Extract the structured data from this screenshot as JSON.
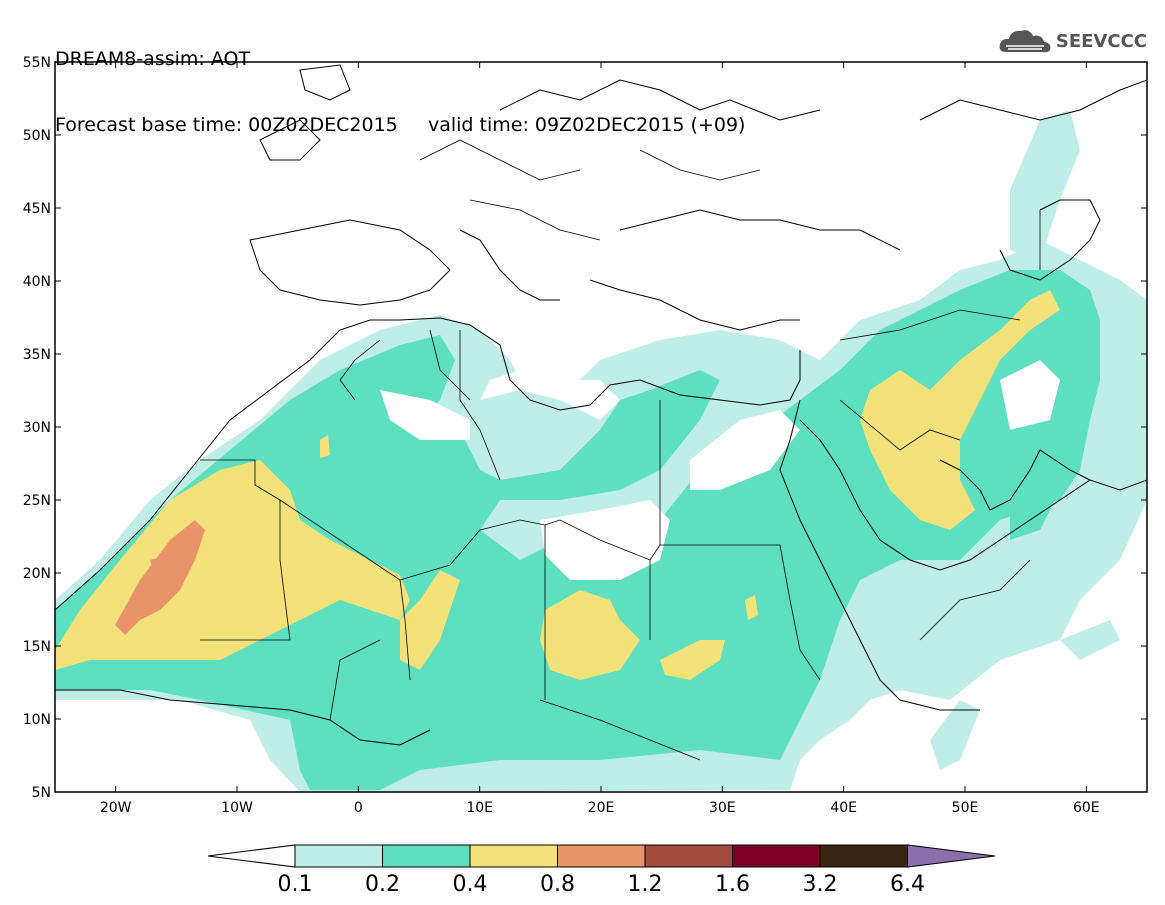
{
  "header": {
    "title_line1": "DREAM8-assim: AOT",
    "base_time": "Forecast base time: 00Z02DEC2015",
    "valid_time": "valid time: 09Z02DEC2015 (+09)"
  },
  "logo": {
    "text": "SEEVCCC",
    "icon": "cloud-icon"
  },
  "map": {
    "projection": "lat-lon",
    "lon_range": [
      -25,
      65
    ],
    "lat_range": [
      5,
      55
    ],
    "lat_ticks": [
      "55N",
      "50N",
      "45N",
      "40N",
      "35N",
      "30N",
      "25N",
      "20N",
      "15N",
      "10N",
      "5N"
    ],
    "lon_ticks": [
      "20W",
      "10W",
      "0",
      "10E",
      "20E",
      "30E",
      "40E",
      "50E",
      "60E"
    ],
    "lat_tick_values": [
      55,
      50,
      45,
      40,
      35,
      30,
      25,
      20,
      15,
      10,
      5
    ],
    "lon_tick_values": [
      -20,
      -10,
      0,
      10,
      20,
      30,
      40,
      50,
      60
    ]
  },
  "legend": {
    "levels": [
      "0.1",
      "0.2",
      "0.4",
      "0.8",
      "1.2",
      "1.6",
      "3.2",
      "6.4"
    ],
    "colors": [
      "#ffffff",
      "#bfeee6",
      "#5ee0c0",
      "#f3e27a",
      "#e9936a",
      "#a44a3e",
      "#7d0026",
      "#3a2414",
      "#8b6eac"
    ]
  }
}
